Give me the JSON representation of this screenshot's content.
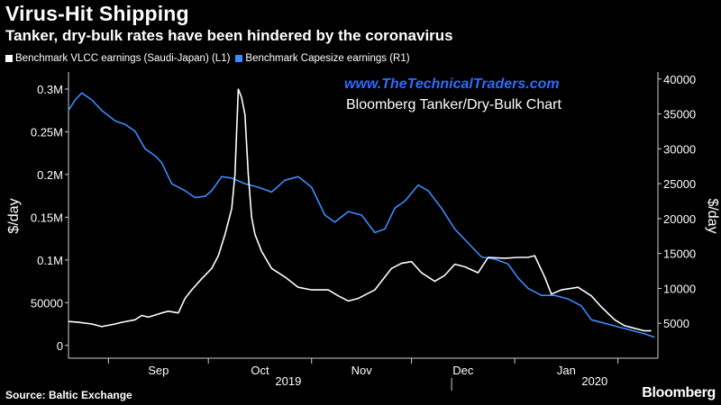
{
  "header": {
    "title": "Virus-Hit Shipping",
    "subtitle": "Tanker, dry-bulk rates have been hindered by the coronavirus"
  },
  "legend": [
    {
      "label": "Benchmark VLCC earnings (Saudi-Japan) (L1)",
      "color": "#ffffff"
    },
    {
      "label": "Benchmark Capesize earnings (R1)",
      "color": "#3d8bff"
    }
  ],
  "watermark": "www.TheTechnicalTraders.com",
  "annotation": "Bloomberg Tanker/Dry-Bulk Chart",
  "footer": {
    "source": "Source: Baltic Exchange",
    "brand": "Bloomberg"
  },
  "chart_data": {
    "type": "line",
    "x_range": [
      "2019-08-20",
      "2020-02-13"
    ],
    "x_ticks": [
      "Sep",
      "Oct",
      "Nov",
      "Dec",
      "Jan"
    ],
    "year_labels": [
      "2019",
      "2020"
    ],
    "left_axis": {
      "label": "$/day",
      "range": [
        -15000,
        320000
      ],
      "ticks": [
        "0",
        "50000",
        "0.1M",
        "0.15M",
        "0.2M",
        "0.25M",
        "0.3M"
      ]
    },
    "right_axis": {
      "label": "$/day",
      "range": [
        0,
        41000
      ],
      "ticks": [
        "5000",
        "10000",
        "15000",
        "20000",
        "25000",
        "30000",
        "35000",
        "40000"
      ]
    },
    "series": [
      {
        "name": "Benchmark VLCC earnings (Saudi-Japan) (L1)",
        "axis": "left",
        "color": "#ffffff",
        "points": [
          [
            "2019-08-20",
            28000
          ],
          [
            "2019-08-23",
            27000
          ],
          [
            "2019-08-27",
            25000
          ],
          [
            "2019-08-30",
            22000
          ],
          [
            "2019-09-03",
            25000
          ],
          [
            "2019-09-05",
            27000
          ],
          [
            "2019-09-09",
            30000
          ],
          [
            "2019-09-11",
            35000
          ],
          [
            "2019-09-13",
            33000
          ],
          [
            "2019-09-17",
            38000
          ],
          [
            "2019-09-19",
            40000
          ],
          [
            "2019-09-22",
            38000
          ],
          [
            "2019-09-24",
            55000
          ],
          [
            "2019-09-26",
            65000
          ],
          [
            "2019-09-29",
            78000
          ],
          [
            "2019-10-02",
            90000
          ],
          [
            "2019-10-04",
            105000
          ],
          [
            "2019-10-06",
            130000
          ],
          [
            "2019-10-08",
            160000
          ],
          [
            "2019-10-09",
            200000
          ],
          [
            "2019-10-10",
            300000
          ],
          [
            "2019-10-11",
            290000
          ],
          [
            "2019-10-12",
            270000
          ],
          [
            "2019-10-13",
            200000
          ],
          [
            "2019-10-14",
            150000
          ],
          [
            "2019-10-15",
            130000
          ],
          [
            "2019-10-17",
            110000
          ],
          [
            "2019-10-20",
            90000
          ],
          [
            "2019-10-24",
            80000
          ],
          [
            "2019-10-28",
            68000
          ],
          [
            "2019-11-01",
            65000
          ],
          [
            "2019-11-06",
            65000
          ],
          [
            "2019-11-09",
            58000
          ],
          [
            "2019-11-12",
            52000
          ],
          [
            "2019-11-15",
            55000
          ],
          [
            "2019-11-20",
            65000
          ],
          [
            "2019-11-23",
            80000
          ],
          [
            "2019-11-25",
            90000
          ],
          [
            "2019-11-28",
            96000
          ],
          [
            "2019-12-01",
            98000
          ],
          [
            "2019-12-04",
            85000
          ],
          [
            "2019-12-08",
            75000
          ],
          [
            "2019-12-11",
            82000
          ],
          [
            "2019-12-14",
            95000
          ],
          [
            "2019-12-17",
            92000
          ],
          [
            "2019-12-21",
            85000
          ],
          [
            "2019-12-24",
            103000
          ],
          [
            "2019-12-29",
            102000
          ],
          [
            "2020-01-02",
            103000
          ],
          [
            "2020-01-05",
            103000
          ],
          [
            "2020-01-07",
            105000
          ],
          [
            "2020-01-10",
            80000
          ],
          [
            "2020-01-12",
            60000
          ],
          [
            "2020-01-15",
            65000
          ],
          [
            "2020-01-20",
            68000
          ],
          [
            "2020-01-24",
            58000
          ],
          [
            "2020-01-27",
            45000
          ],
          [
            "2020-01-31",
            30000
          ],
          [
            "2020-02-03",
            23000
          ],
          [
            "2020-02-06",
            20000
          ],
          [
            "2020-02-09",
            17000
          ],
          [
            "2020-02-11",
            17000
          ]
        ]
      },
      {
        "name": "Benchmark Capesize earnings (R1)",
        "axis": "right",
        "color": "#3d8bff",
        "points": [
          [
            "2019-08-20",
            35500
          ],
          [
            "2019-08-22",
            37000
          ],
          [
            "2019-08-24",
            38000
          ],
          [
            "2019-08-27",
            37000
          ],
          [
            "2019-08-30",
            35500
          ],
          [
            "2019-09-03",
            34000
          ],
          [
            "2019-09-06",
            33500
          ],
          [
            "2019-09-09",
            32500
          ],
          [
            "2019-09-12",
            30000
          ],
          [
            "2019-09-15",
            29000
          ],
          [
            "2019-09-17",
            28000
          ],
          [
            "2019-09-20",
            25000
          ],
          [
            "2019-09-24",
            24000
          ],
          [
            "2019-09-27",
            23000
          ],
          [
            "2019-09-30",
            23200
          ],
          [
            "2019-10-02",
            24000
          ],
          [
            "2019-10-05",
            26000
          ],
          [
            "2019-10-08",
            25800
          ],
          [
            "2019-10-12",
            25000
          ],
          [
            "2019-10-16",
            24500
          ],
          [
            "2019-10-20",
            23800
          ],
          [
            "2019-10-24",
            25500
          ],
          [
            "2019-10-28",
            26000
          ],
          [
            "2019-11-01",
            24500
          ],
          [
            "2019-11-05",
            20500
          ],
          [
            "2019-11-08",
            19500
          ],
          [
            "2019-11-12",
            21000
          ],
          [
            "2019-11-16",
            20500
          ],
          [
            "2019-11-20",
            18000
          ],
          [
            "2019-11-23",
            18500
          ],
          [
            "2019-11-26",
            21500
          ],
          [
            "2019-11-29",
            22500
          ],
          [
            "2019-12-03",
            24800
          ],
          [
            "2019-12-06",
            24000
          ],
          [
            "2019-12-10",
            21500
          ],
          [
            "2019-12-14",
            18500
          ],
          [
            "2019-12-18",
            16500
          ],
          [
            "2019-12-22",
            14500
          ],
          [
            "2019-12-26",
            14200
          ],
          [
            "2019-12-30",
            13500
          ],
          [
            "2020-01-02",
            11500
          ],
          [
            "2020-01-05",
            10000
          ],
          [
            "2020-01-09",
            9000
          ],
          [
            "2020-01-13",
            9000
          ],
          [
            "2020-01-17",
            8500
          ],
          [
            "2020-01-21",
            7500
          ],
          [
            "2020-01-24",
            5500
          ],
          [
            "2020-01-28",
            5000
          ],
          [
            "2020-02-01",
            4500
          ],
          [
            "2020-02-05",
            4000
          ],
          [
            "2020-02-09",
            3500
          ],
          [
            "2020-02-12",
            3000
          ]
        ]
      }
    ]
  }
}
